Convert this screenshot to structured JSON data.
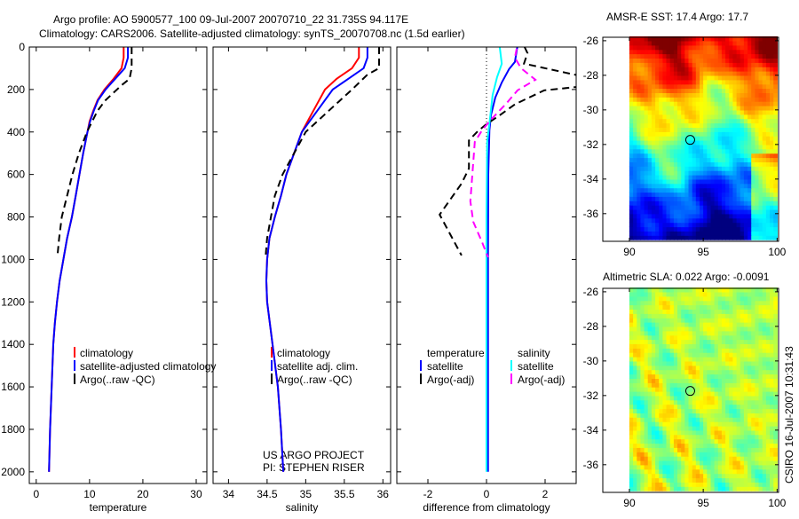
{
  "title": {
    "line1": "Argo profile: AO 5900577_100 09-Jul-2007 20070710_22 31.735S 94.117E",
    "line2": "Climatology: CARS2006. Satellite-adjusted climatology: synTS_20070708.nc (1.5d earlier)"
  },
  "credit": {
    "project": "US ARGO PROJECT",
    "pi": "PI: STEPHEN RISER",
    "stamp": "CSIRO 16-Jul-2007 10:31:43"
  },
  "colors": {
    "climatology": "#ff0000",
    "satellite": "#0000ff",
    "argo": "#000000",
    "sal_satellite": "#00ffff",
    "sal_argo": "#ff00ff"
  },
  "chart_data": [
    {
      "type": "line",
      "xlabel": "temperature",
      "ylabel": "",
      "xlim": [
        -1.3,
        32
      ],
      "ylim": [
        2055,
        0
      ],
      "xticks": [
        "0",
        "10",
        "20",
        "30"
      ],
      "xtick_values": [
        0,
        10,
        20,
        30
      ],
      "yticks": [
        "0",
        "200",
        "400",
        "600",
        "800",
        "1000",
        "1200",
        "1400",
        "1600",
        "1800",
        "2000"
      ],
      "ytick_values": [
        0,
        200,
        400,
        600,
        800,
        1000,
        1200,
        1400,
        1600,
        1800,
        2000
      ],
      "legend": [
        "climatology",
        "satellite-adjusted climatology",
        "Argo(..raw -QC)"
      ],
      "series": [
        {
          "name": "climatology",
          "color": "#ff0000",
          "dash": false,
          "depth": [
            0,
            50,
            100,
            150,
            200,
            250,
            300,
            350,
            400,
            500,
            600,
            700,
            800,
            900,
            1000,
            1100,
            1200,
            1300,
            1400,
            1600,
            1800,
            2000
          ],
          "values": [
            16.4,
            16.4,
            16.0,
            14.5,
            12.8,
            11.5,
            10.7,
            10.0,
            9.6,
            8.8,
            8.1,
            7.4,
            6.7,
            5.8,
            5.1,
            4.4,
            3.9,
            3.5,
            3.2,
            2.9,
            2.6,
            2.4
          ]
        },
        {
          "name": "satellite-adjusted climatology",
          "color": "#0000ff",
          "dash": false,
          "depth": [
            0,
            50,
            100,
            150,
            200,
            250,
            300,
            350,
            400,
            500,
            600,
            700,
            800,
            900,
            1000,
            1100,
            1200,
            1300,
            1400,
            1600,
            1800,
            2000
          ],
          "values": [
            17.2,
            17.2,
            16.6,
            14.8,
            13.0,
            11.6,
            10.8,
            10.1,
            9.6,
            8.8,
            8.1,
            7.4,
            6.7,
            5.8,
            5.1,
            4.4,
            3.9,
            3.5,
            3.2,
            2.9,
            2.6,
            2.4
          ]
        },
        {
          "name": "Argo(..raw -QC)",
          "color": "#000000",
          "dash": true,
          "depth": [
            0,
            100,
            150,
            180,
            250,
            300,
            400,
            500,
            600,
            700,
            800,
            900,
            980
          ],
          "values": [
            17.9,
            17.9,
            17.5,
            16.0,
            13.0,
            11.5,
            9.5,
            8.0,
            6.8,
            5.8,
            4.8,
            4.3,
            4.0
          ]
        }
      ]
    },
    {
      "type": "line",
      "xlabel": "salinity",
      "xlim": [
        33.8,
        36.1
      ],
      "ylim": [
        2055,
        0
      ],
      "xticks": [
        "34",
        "34.5",
        "35",
        "35.5",
        "36"
      ],
      "xtick_values": [
        34,
        34.5,
        35,
        35.5,
        36
      ],
      "legend": [
        "climatology",
        "satellite adj. clim.",
        "Argo(..raw -QC)"
      ],
      "series": [
        {
          "name": "climatology",
          "color": "#ff0000",
          "dash": false,
          "depth": [
            0,
            50,
            100,
            150,
            200,
            300,
            400,
            500,
            600,
            700,
            800,
            900,
            1000,
            1100,
            1200,
            1400,
            1600,
            1800,
            2000
          ],
          "values": [
            35.69,
            35.69,
            35.6,
            35.4,
            35.25,
            35.1,
            34.95,
            34.85,
            34.75,
            34.68,
            34.6,
            34.53,
            34.5,
            34.49,
            34.5,
            34.57,
            34.64,
            34.68,
            34.71
          ]
        },
        {
          "name": "satellite adj. clim.",
          "color": "#0000ff",
          "dash": false,
          "depth": [
            0,
            50,
            100,
            150,
            200,
            300,
            400,
            500,
            600,
            700,
            800,
            900,
            1000,
            1100,
            1200,
            1400,
            1600,
            1800,
            2000
          ],
          "values": [
            35.8,
            35.8,
            35.75,
            35.55,
            35.35,
            35.15,
            34.95,
            34.85,
            34.75,
            34.68,
            34.6,
            34.53,
            34.5,
            34.49,
            34.5,
            34.57,
            34.64,
            34.68,
            34.71
          ]
        },
        {
          "name": "Argo(..raw -QC)",
          "color": "#000000",
          "dash": true,
          "depth": [
            0,
            100,
            130,
            200,
            300,
            400,
            500,
            600,
            700,
            800,
            900,
            990
          ],
          "values": [
            35.95,
            35.95,
            35.8,
            35.6,
            35.3,
            35.0,
            34.85,
            34.7,
            34.6,
            34.55,
            34.5,
            34.48
          ]
        }
      ]
    },
    {
      "type": "line",
      "xlabel": "difference from climatology",
      "xlim": [
        -3.06,
        3.06
      ],
      "ylim": [
        2055,
        0
      ],
      "xticks": [
        "-2",
        "0",
        "2"
      ],
      "xtick_values": [
        -2,
        0,
        2
      ],
      "legend_headers": [
        "temperature",
        "salinity"
      ],
      "legend": [
        "satellite",
        "Argo(-adj)",
        "satellite",
        "Argo(-adj)"
      ],
      "series": [
        {
          "name": "temperature satellite",
          "color": "#0000ff",
          "dash": false,
          "depth": [
            0,
            70,
            104,
            167,
            238,
            321,
            392,
            600,
            1000,
            1500,
            2000
          ],
          "values": [
            1.05,
            0.97,
            0.77,
            0.52,
            0.3,
            0.15,
            0.1,
            0.06,
            0.05,
            0.05,
            0.05
          ]
        },
        {
          "name": "temperature Argo(-adj)",
          "color": "#000000",
          "dash": true,
          "depth": [
            0,
            29,
            78,
            133,
            188,
            204,
            270,
            321,
            363,
            397,
            440,
            572,
            643,
            789,
            981
          ],
          "values": [
            1.3,
            1.4,
            1.28,
            3.1,
            3.1,
            1.97,
            0.97,
            0.45,
            0.0,
            -0.3,
            -0.6,
            -0.6,
            -0.85,
            -1.6,
            -0.85
          ]
        },
        {
          "name": "salinity satellite",
          "color": "#00ffff",
          "dash": false,
          "depth": [
            0,
            79,
            142,
            225,
            334,
            450,
            800,
            1200,
            2000
          ],
          "values": [
            0.45,
            0.52,
            0.36,
            0.21,
            0.12,
            0.02,
            0.0,
            0.0,
            0.0
          ]
        },
        {
          "name": "salinity Argo(-adj)",
          "color": "#ff00ff",
          "dash": true,
          "depth": [
            8,
            50,
            100,
            154,
            204,
            267,
            342,
            392,
            447,
            726,
            823,
            919,
            990
          ],
          "values": [
            1.03,
            0.97,
            1.18,
            1.67,
            1.06,
            0.67,
            0.15,
            -0.15,
            -0.4,
            -0.55,
            -0.45,
            -0.15,
            0.05
          ]
        }
      ]
    },
    {
      "type": "heatmap",
      "title": "AMSR-E SST: 17.4 Argo: 17.7",
      "xlim": [
        88.2,
        100.1
      ],
      "ylim": [
        -37.6,
        -25.8
      ],
      "xticks": [
        "90",
        "95",
        "100"
      ],
      "xtick_values": [
        90,
        95,
        100
      ],
      "yticks": [
        "-26",
        "-28",
        "-30",
        "-32",
        "-34",
        "-36"
      ],
      "ytick_values": [
        -26,
        -28,
        -30,
        -32,
        -34,
        -36
      ],
      "marker": {
        "lon": 94.117,
        "lat": -31.735
      }
    },
    {
      "type": "heatmap",
      "title": "Altimetric SLA: 0.022 Argo: -0.0091",
      "xlim": [
        88.2,
        100.1
      ],
      "ylim": [
        -37.6,
        -25.8
      ],
      "xticks": [
        "90",
        "95",
        "100"
      ],
      "xtick_values": [
        90,
        95,
        100
      ],
      "yticks": [
        "-26",
        "-28",
        "-30",
        "-32",
        "-34",
        "-36"
      ],
      "ytick_values": [
        -26,
        -28,
        -30,
        -32,
        -34,
        -36
      ],
      "marker": {
        "lon": 94.117,
        "lat": -31.735
      }
    }
  ]
}
